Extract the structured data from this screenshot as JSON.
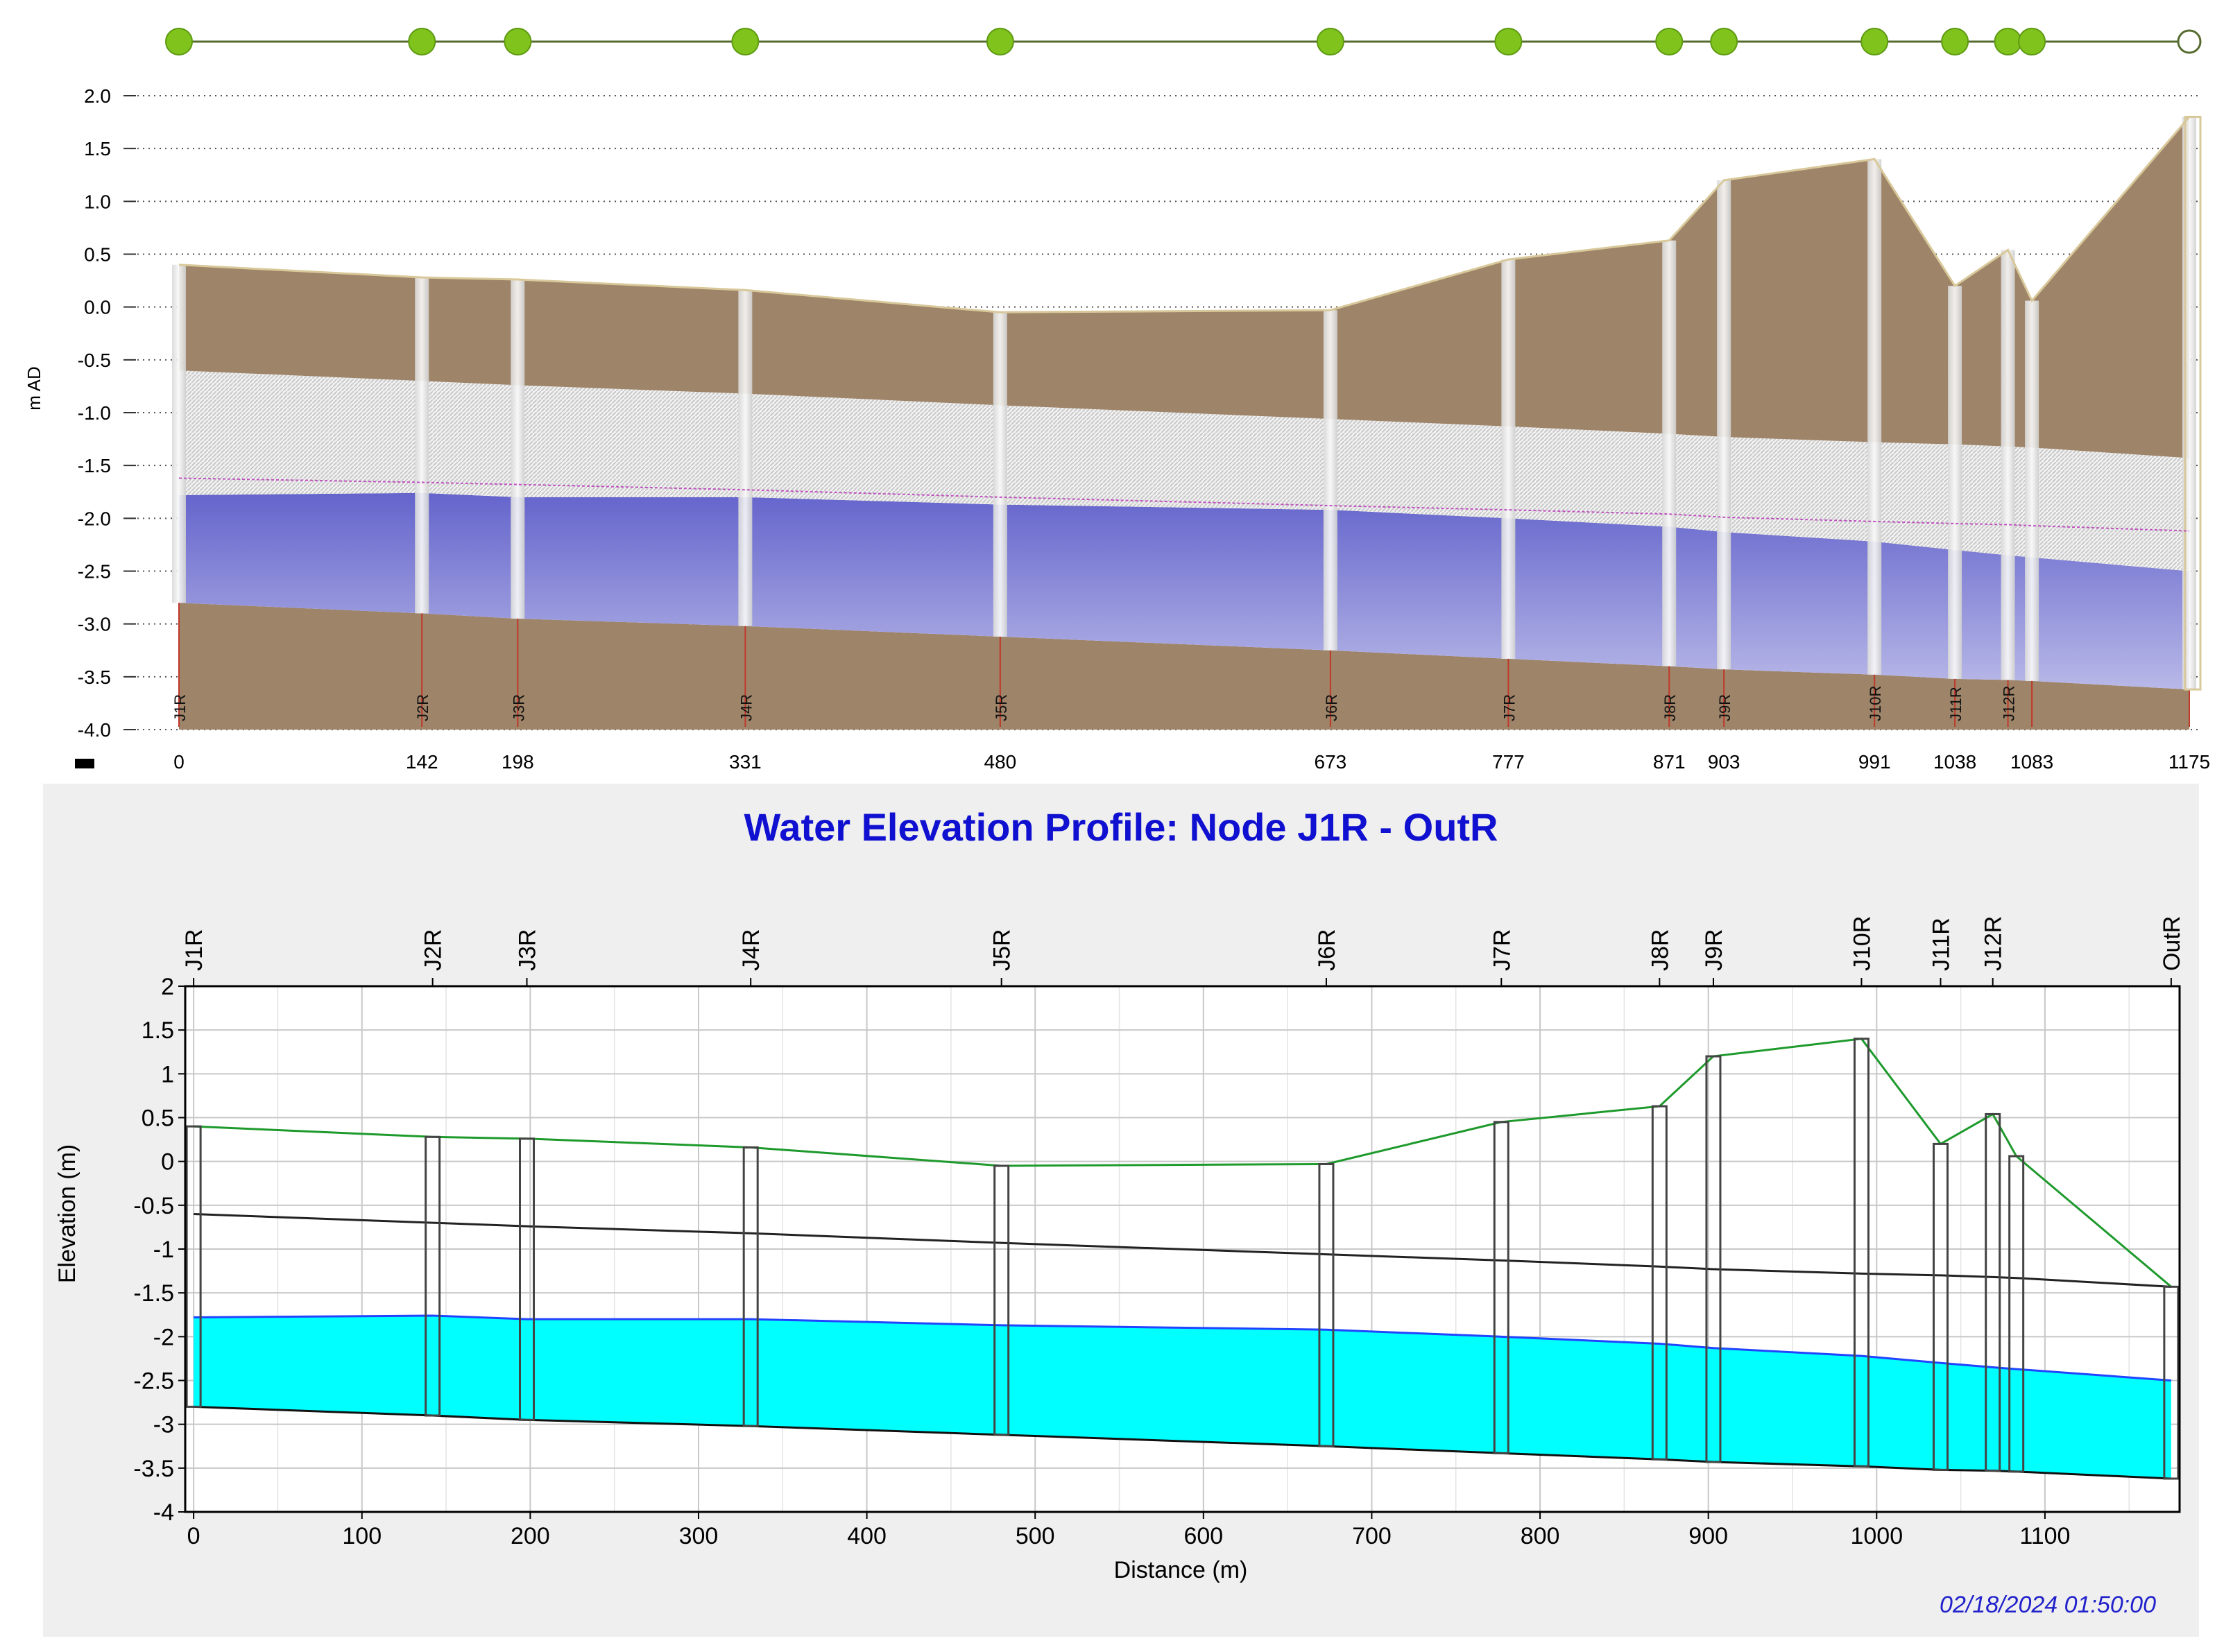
{
  "colors": {
    "ground": "#9e8468",
    "water_top": "#6c6cd0",
    "water_fill_bottom": "#00ffff",
    "node_green": "#7fc31c",
    "ground_line": "#1e9a2c",
    "pipe_crown_line": "#222222",
    "water_line": "#2244ff",
    "hgl_line": "#c050c0",
    "title": "#1010d0"
  },
  "top_profile": {
    "y_axis_label": "m AD",
    "y_ticks": [
      "2.0",
      "1.5",
      "1.0",
      "0.5",
      "0.0",
      "-0.5",
      "-1.0",
      "-1.5",
      "-2.0",
      "-2.5",
      "-3.0",
      "-3.5",
      "-4.0"
    ],
    "x_ticks": [
      "0",
      "142",
      "198",
      "331",
      "480",
      "673",
      "777",
      "871",
      "903",
      "991",
      "1038",
      "1083",
      "1175"
    ],
    "node_labels": [
      "J1R",
      "J2R",
      "J3R",
      "J4R",
      "J5R",
      "J6R",
      "J7R",
      "J8R",
      "J9R",
      "J10R",
      "J11R",
      "J12R"
    ]
  },
  "bottom_chart": {
    "title": "Water Elevation Profile: Node J1R - OutR",
    "ylabel": "Elevation (m)",
    "xlabel": "Distance (m)",
    "y_ticks": [
      "2",
      "1.5",
      "1",
      "0.5",
      "0",
      "-0.5",
      "-1",
      "-1.5",
      "-2",
      "-2.5",
      "-3",
      "-3.5",
      "-4"
    ],
    "x_ticks": [
      "0",
      "100",
      "200",
      "300",
      "400",
      "500",
      "600",
      "700",
      "800",
      "900",
      "1000",
      "1100"
    ],
    "timestamp": "02/18/2024 01:50:00"
  },
  "chart_data": {
    "type": "area",
    "title": "Water Elevation Profile: Node J1R - OutR",
    "xlabel": "Distance (m)",
    "ylabel": "Elevation (m)",
    "xlim": [
      -5,
      1180
    ],
    "ylim": [
      -4,
      2
    ],
    "nodes": [
      {
        "name": "J1R",
        "x": 0,
        "ground": 0.4,
        "invert": -2.8,
        "water": -1.78,
        "crown": -0.6
      },
      {
        "name": "J2R",
        "x": 142,
        "ground": 0.28,
        "invert": -2.9,
        "water": -1.76,
        "crown": -0.7
      },
      {
        "name": "J3R",
        "x": 198,
        "ground": 0.26,
        "invert": -2.95,
        "water": -1.8,
        "crown": -0.74
      },
      {
        "name": "J4R",
        "x": 331,
        "ground": 0.16,
        "invert": -3.02,
        "water": -1.8,
        "crown": -0.82
      },
      {
        "name": "J5R",
        "x": 480,
        "ground": -0.05,
        "invert": -3.12,
        "water": -1.87,
        "crown": -0.93
      },
      {
        "name": "J6R",
        "x": 673,
        "ground": -0.03,
        "invert": -3.25,
        "water": -1.92,
        "crown": -1.06
      },
      {
        "name": "J7R",
        "x": 777,
        "ground": 0.45,
        "invert": -3.33,
        "water": -2.0,
        "crown": -1.13
      },
      {
        "name": "J8R",
        "x": 871,
        "ground": 0.63,
        "invert": -3.4,
        "water": -2.08,
        "crown": -1.2
      },
      {
        "name": "J9R",
        "x": 903,
        "ground": 1.2,
        "invert": -3.43,
        "water": -2.13,
        "crown": -1.23
      },
      {
        "name": "J10R",
        "x": 991,
        "ground": 1.4,
        "invert": -3.48,
        "water": -2.22,
        "crown": -1.28
      },
      {
        "name": "J11R",
        "x": 1038,
        "ground": 0.2,
        "invert": -3.52,
        "water": -2.3,
        "crown": -1.3
      },
      {
        "name": "J12R",
        "x": 1069,
        "ground": 0.54,
        "invert": -3.53,
        "water": -2.35,
        "crown": -1.32
      },
      {
        "name": "",
        "x": 1083,
        "ground": 0.06,
        "invert": -3.54,
        "water": -2.37,
        "crown": -1.33
      },
      {
        "name": "OutR",
        "x": 1175,
        "ground": -1.43,
        "invert": -3.62,
        "water": -2.5,
        "crown": -1.43
      }
    ],
    "top_panel_ground": [
      0.4,
      0.28,
      0.26,
      0.16,
      -0.05,
      -0.03,
      0.45,
      0.63,
      1.2,
      1.4,
      0.2,
      0.54,
      0.06,
      1.8
    ],
    "top_panel_hgl": [
      -1.62,
      -1.66,
      -1.68,
      -1.73,
      -1.8,
      -1.88,
      -1.92,
      -1.96,
      -1.99,
      -2.03,
      -2.05,
      -2.06,
      -2.07,
      -2.12
    ]
  }
}
